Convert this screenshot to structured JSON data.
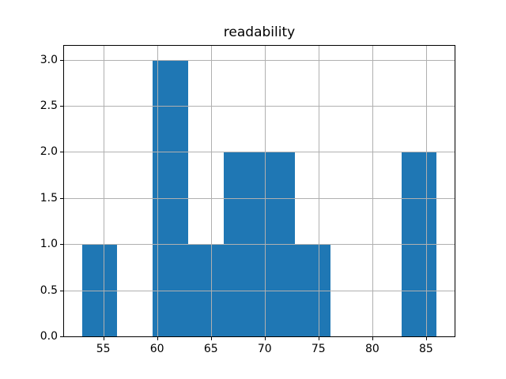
{
  "colors": {
    "bar": "#1f77b4",
    "grid": "#b0b0b0",
    "spine": "#000000",
    "text": "#000000",
    "background": "#ffffff"
  },
  "chart_data": {
    "type": "bar",
    "subtype": "histogram",
    "title": "readability",
    "xlabel": "",
    "ylabel": "",
    "bin_edges": [
      53,
      56.3,
      59.6,
      62.9,
      66.2,
      69.5,
      72.8,
      76.1,
      79.4,
      82.7,
      86
    ],
    "counts": [
      1,
      0,
      3,
      1,
      2,
      2,
      1,
      0,
      0,
      2
    ],
    "xlim": [
      51.35,
      87.65
    ],
    "ylim": [
      0,
      3.15
    ],
    "xticks": [
      55,
      60,
      65,
      70,
      75,
      80,
      85
    ],
    "xtick_labels": [
      "55",
      "60",
      "65",
      "70",
      "75",
      "80",
      "85"
    ],
    "yticks": [
      0.0,
      0.5,
      1.0,
      1.5,
      2.0,
      2.5,
      3.0
    ],
    "ytick_labels": [
      "0.0",
      "0.5",
      "1.0",
      "1.5",
      "2.0",
      "2.5",
      "3.0"
    ],
    "grid": true,
    "grid_above_bars": true,
    "legend": null
  }
}
